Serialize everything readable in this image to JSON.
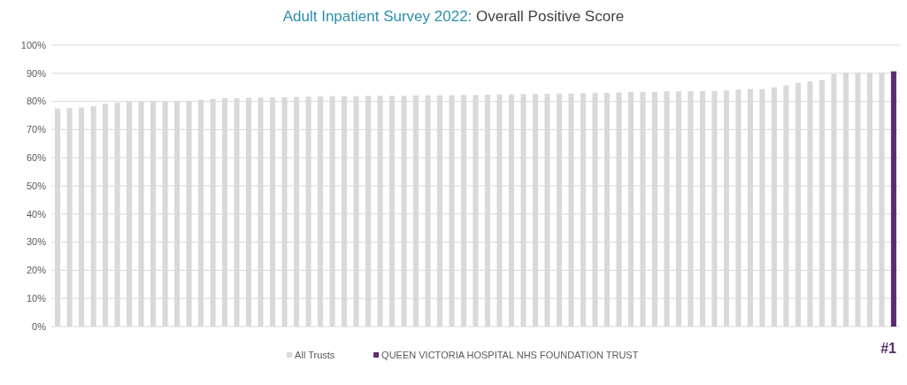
{
  "chart_data": {
    "type": "bar",
    "title": "Adult Inpatient Survey 2022:",
    "subtitle": "Overall Positive Score",
    "categories": [
      null,
      null,
      null,
      null,
      null,
      null,
      null,
      null,
      null,
      null,
      null,
      null,
      null,
      null,
      null,
      null,
      null,
      null,
      null,
      null,
      null,
      null,
      null,
      null,
      null,
      null,
      null,
      null,
      null,
      null,
      null,
      null,
      null,
      null,
      null,
      null,
      null,
      null,
      null,
      null,
      null,
      null,
      null,
      null,
      null,
      null,
      null,
      null,
      null,
      null,
      null,
      null,
      null,
      null,
      null,
      null,
      null,
      null,
      null,
      null,
      null,
      null,
      null,
      null,
      null,
      null,
      null,
      null,
      null,
      null,
      null
    ],
    "series": [
      {
        "name": "All Trusts",
        "color": "#d9d9d9",
        "values": [
          77.5,
          77.6,
          77.8,
          78.3,
          79.2,
          79.5,
          79.8,
          79.9,
          80,
          80,
          80,
          80.2,
          80.6,
          80.9,
          81.1,
          81.2,
          81.3,
          81.4,
          81.4,
          81.5,
          81.6,
          81.7,
          81.8,
          81.9,
          81.9,
          81.9,
          82,
          82,
          82,
          82,
          82.1,
          82.2,
          82.2,
          82.2,
          82.3,
          82.3,
          82.4,
          82.5,
          82.5,
          82.6,
          82.6,
          82.7,
          82.8,
          82.8,
          82.9,
          83,
          83.1,
          83.2,
          83.4,
          83.4,
          83.4,
          83.6,
          83.6,
          83.6,
          83.7,
          83.7,
          83.9,
          84.2,
          84.4,
          84.4,
          85,
          85.7,
          86.6,
          87.1,
          87.6,
          89.7,
          90.2,
          90.2,
          90.2,
          90.2,
          null
        ]
      },
      {
        "name": "QUEEN VICTORIA HOSPITAL NHS FOUNDATION TRUST",
        "color": "#5c2d6e",
        "values": [
          null,
          null,
          null,
          null,
          null,
          null,
          null,
          null,
          null,
          null,
          null,
          null,
          null,
          null,
          null,
          null,
          null,
          null,
          null,
          null,
          null,
          null,
          null,
          null,
          null,
          null,
          null,
          null,
          null,
          null,
          null,
          null,
          null,
          null,
          null,
          null,
          null,
          null,
          null,
          null,
          null,
          null,
          null,
          null,
          null,
          null,
          null,
          null,
          null,
          null,
          null,
          null,
          null,
          null,
          null,
          null,
          null,
          null,
          null,
          null,
          null,
          null,
          null,
          null,
          null,
          null,
          null,
          null,
          null,
          null,
          90.7
        ]
      }
    ],
    "ylim": [
      0,
      100
    ],
    "yticks": [
      {
        "value": 0,
        "label": "0%"
      },
      {
        "value": 10,
        "label": "10%"
      },
      {
        "value": 20,
        "label": "20%"
      },
      {
        "value": 30,
        "label": "30%"
      },
      {
        "value": 40,
        "label": "40%"
      },
      {
        "value": 50,
        "label": "50%"
      },
      {
        "value": 60,
        "label": "60%"
      },
      {
        "value": 70,
        "label": "70%"
      },
      {
        "value": 80,
        "label": "80%"
      },
      {
        "value": 90,
        "label": "90%"
      },
      {
        "value": 100,
        "label": "100%"
      }
    ],
    "grid": "y",
    "legend": "bottom",
    "annotations": [
      "#1"
    ]
  }
}
